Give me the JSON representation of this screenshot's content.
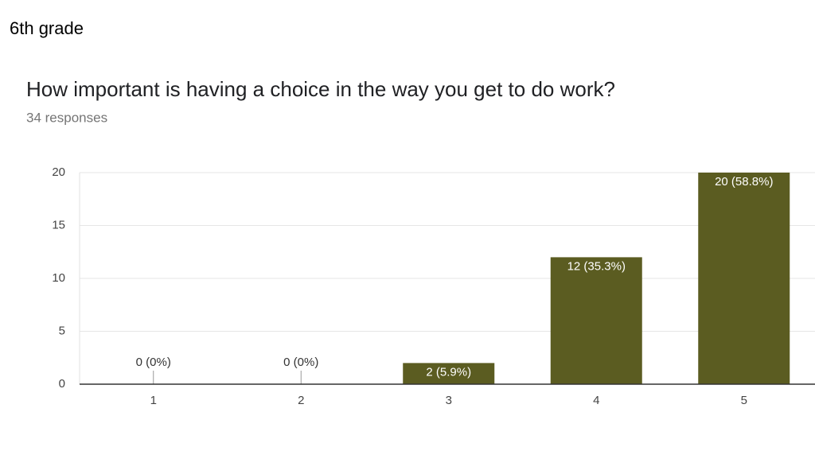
{
  "header": {
    "title": "6th grade"
  },
  "chart_data": {
    "type": "bar",
    "title": "How important is having a choice in the way you get to do work?",
    "subtitle": "34 responses",
    "categories": [
      "1",
      "2",
      "3",
      "4",
      "5"
    ],
    "values": [
      0,
      0,
      2,
      12,
      20
    ],
    "value_labels": [
      "0 (0%)",
      "0 (0%)",
      "2 (5.9%)",
      "12 (35.3%)",
      "20 (58.8%)"
    ],
    "color": "#5b5c21",
    "ylim": [
      0,
      20
    ],
    "yticks": [
      0,
      5,
      10,
      15,
      20
    ],
    "grid": true
  }
}
